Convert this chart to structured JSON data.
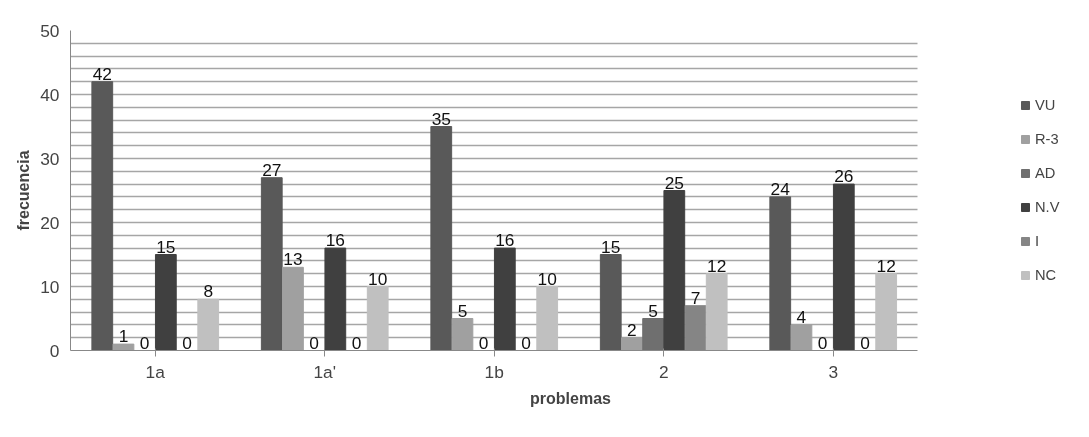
{
  "chart_data": {
    "type": "bar",
    "xlabel": "problemas",
    "ylabel": "frecuencia",
    "categories": [
      "1a",
      "1a'",
      "1b",
      "2",
      "3"
    ],
    "series": [
      {
        "name": "VU",
        "color": "#595959",
        "values": [
          42,
          27,
          35,
          15,
          24
        ]
      },
      {
        "name": "R-3",
        "color": "#a0a0a0",
        "values": [
          1,
          13,
          5,
          2,
          4
        ]
      },
      {
        "name": "AD",
        "color": "#6f6f6f",
        "values": [
          0,
          0,
          0,
          5,
          0
        ]
      },
      {
        "name": "N.V",
        "color": "#404040",
        "values": [
          15,
          16,
          16,
          25,
          26
        ]
      },
      {
        "name": "I",
        "color": "#858585",
        "values": [
          0,
          0,
          0,
          7,
          0
        ]
      },
      {
        "name": "NC",
        "color": "#c0c0c0",
        "values": [
          8,
          10,
          10,
          12,
          12
        ]
      }
    ],
    "ylim": [
      0,
      50
    ],
    "yticks": [
      0,
      {
        "value": 2,
        "label": null
      },
      {
        "value": 4,
        "label": null
      },
      {
        "value": 6,
        "label": null
      },
      {
        "value": 8,
        "label": null
      },
      10,
      {
        "value": 12,
        "label": null
      },
      {
        "value": 14,
        "label": null
      },
      {
        "value": 16,
        "label": null
      },
      {
        "value": 18,
        "label": null
      },
      20,
      {
        "value": 22,
        "label": null
      },
      {
        "value": 24,
        "label": null
      },
      {
        "value": 26,
        "label": null
      },
      {
        "value": 28,
        "label": null
      },
      30,
      {
        "value": 32,
        "label": null
      },
      {
        "value": 34,
        "label": null
      },
      {
        "value": 36,
        "label": null
      },
      {
        "value": 38,
        "label": null
      },
      40,
      {
        "value": 42,
        "label": null
      },
      {
        "value": 44,
        "label": null
      },
      {
        "value": 46,
        "label": null
      },
      {
        "value": 48,
        "label": null
      },
      50
    ],
    "grid": "y",
    "legend": "right",
    "data_labels": true
  }
}
